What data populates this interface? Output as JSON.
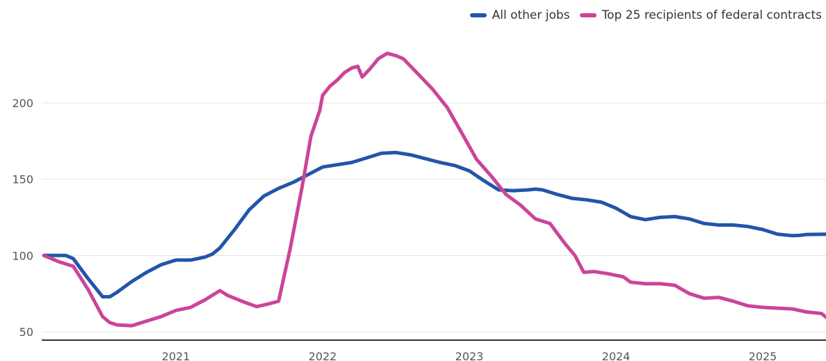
{
  "chart_data": {
    "type": "line",
    "title": "",
    "xlabel": "",
    "ylabel": "",
    "x_ticks": [
      "2021",
      "2022",
      "2023",
      "2024",
      "2025"
    ],
    "y_ticks": [
      50,
      100,
      150,
      200
    ],
    "ylim": [
      50,
      235
    ],
    "xlim": [
      2020.1,
      2025.48
    ],
    "legend_position": "top-right",
    "grid": "horizontal",
    "series": [
      {
        "name": "All other jobs",
        "color": "#2255aa",
        "points": [
          [
            2020.1,
            100
          ],
          [
            2020.2,
            100
          ],
          [
            2020.25,
            100
          ],
          [
            2020.3,
            98
          ],
          [
            2020.4,
            85
          ],
          [
            2020.5,
            73
          ],
          [
            2020.55,
            73
          ],
          [
            2020.6,
            76
          ],
          [
            2020.7,
            83
          ],
          [
            2020.8,
            89
          ],
          [
            2020.9,
            94
          ],
          [
            2021.0,
            97
          ],
          [
            2021.1,
            97
          ],
          [
            2021.2,
            99
          ],
          [
            2021.25,
            101
          ],
          [
            2021.3,
            105
          ],
          [
            2021.4,
            117
          ],
          [
            2021.5,
            130
          ],
          [
            2021.6,
            139
          ],
          [
            2021.7,
            144
          ],
          [
            2021.8,
            148
          ],
          [
            2021.9,
            153
          ],
          [
            2022.0,
            158
          ],
          [
            2022.1,
            159.5
          ],
          [
            2022.2,
            161
          ],
          [
            2022.3,
            164
          ],
          [
            2022.4,
            167
          ],
          [
            2022.5,
            167.5
          ],
          [
            2022.6,
            166
          ],
          [
            2022.7,
            163.5
          ],
          [
            2022.8,
            161
          ],
          [
            2022.9,
            159
          ],
          [
            2023.0,
            155.5
          ],
          [
            2023.1,
            149
          ],
          [
            2023.2,
            143
          ],
          [
            2023.3,
            142.5
          ],
          [
            2023.4,
            143
          ],
          [
            2023.45,
            143.5
          ],
          [
            2023.5,
            143
          ],
          [
            2023.6,
            140
          ],
          [
            2023.7,
            137.5
          ],
          [
            2023.8,
            136.5
          ],
          [
            2023.9,
            135
          ],
          [
            2024.0,
            131
          ],
          [
            2024.1,
            125.5
          ],
          [
            2024.2,
            123.5
          ],
          [
            2024.3,
            125
          ],
          [
            2024.4,
            125.5
          ],
          [
            2024.5,
            124
          ],
          [
            2024.6,
            121
          ],
          [
            2024.7,
            120
          ],
          [
            2024.8,
            120
          ],
          [
            2024.9,
            119
          ],
          [
            2025.0,
            117
          ],
          [
            2025.1,
            114
          ],
          [
            2025.2,
            113
          ],
          [
            2025.25,
            113.2
          ],
          [
            2025.3,
            113.8
          ],
          [
            2025.48,
            114
          ]
        ]
      },
      {
        "name": "Top 25 recipients of federal contracts",
        "color": "#cc4499",
        "points": [
          [
            2020.1,
            100
          ],
          [
            2020.2,
            96
          ],
          [
            2020.3,
            93
          ],
          [
            2020.4,
            78
          ],
          [
            2020.5,
            60
          ],
          [
            2020.55,
            56
          ],
          [
            2020.6,
            54.5
          ],
          [
            2020.7,
            54
          ],
          [
            2020.8,
            57
          ],
          [
            2020.9,
            60
          ],
          [
            2021.0,
            64
          ],
          [
            2021.1,
            66
          ],
          [
            2021.2,
            71
          ],
          [
            2021.3,
            77
          ],
          [
            2021.35,
            74
          ],
          [
            2021.45,
            70
          ],
          [
            2021.55,
            66.5
          ],
          [
            2021.62,
            68
          ],
          [
            2021.7,
            70
          ],
          [
            2021.78,
            105
          ],
          [
            2021.86,
            145
          ],
          [
            2021.92,
            178
          ],
          [
            2021.98,
            195
          ],
          [
            2022.0,
            205
          ],
          [
            2022.05,
            211
          ],
          [
            2022.1,
            215
          ],
          [
            2022.15,
            220
          ],
          [
            2022.2,
            223
          ],
          [
            2022.24,
            224
          ],
          [
            2022.27,
            217
          ],
          [
            2022.32,
            222
          ],
          [
            2022.38,
            229
          ],
          [
            2022.44,
            232.5
          ],
          [
            2022.5,
            231
          ],
          [
            2022.55,
            229
          ],
          [
            2022.65,
            219
          ],
          [
            2022.75,
            209
          ],
          [
            2022.85,
            197
          ],
          [
            2022.95,
            180
          ],
          [
            2023.05,
            163
          ],
          [
            2023.15,
            152
          ],
          [
            2023.25,
            140
          ],
          [
            2023.35,
            133
          ],
          [
            2023.45,
            124
          ],
          [
            2023.55,
            121
          ],
          [
            2023.65,
            108
          ],
          [
            2023.72,
            100
          ],
          [
            2023.78,
            89
          ],
          [
            2023.85,
            89.5
          ],
          [
            2023.95,
            88
          ],
          [
            2024.05,
            86
          ],
          [
            2024.1,
            82.5
          ],
          [
            2024.2,
            81.5
          ],
          [
            2024.3,
            81.5
          ],
          [
            2024.4,
            80.5
          ],
          [
            2024.5,
            75
          ],
          [
            2024.6,
            72
          ],
          [
            2024.7,
            72.5
          ],
          [
            2024.8,
            70
          ],
          [
            2024.9,
            67
          ],
          [
            2025.0,
            66
          ],
          [
            2025.1,
            65.5
          ],
          [
            2025.2,
            65
          ],
          [
            2025.3,
            63
          ],
          [
            2025.4,
            62
          ],
          [
            2025.48,
            56
          ]
        ]
      }
    ]
  }
}
